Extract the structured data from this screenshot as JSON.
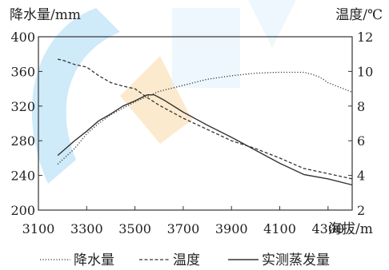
{
  "chart_data": {
    "type": "line",
    "xlabel": "海拔/m",
    "ylabel_left": "降水量/mm",
    "ylabel_right": "温度/℃",
    "x_ticks": [
      3100,
      3300,
      3500,
      3700,
      3900,
      4100,
      4300
    ],
    "xlim": [
      3100,
      4400
    ],
    "ylim_left": [
      200,
      400
    ],
    "y_ticks_left": [
      200,
      240,
      280,
      320,
      360,
      400
    ],
    "ylim_right": [
      2,
      12
    ],
    "y_ticks_right": [
      2,
      4,
      6,
      8,
      10,
      12
    ],
    "grid": false,
    "legend_position": "bottom",
    "series": [
      {
        "name": "降水量",
        "axis": "left",
        "style": "dotted",
        "x": [
          3180,
          3250,
          3300,
          3350,
          3400,
          3500,
          3600,
          3700,
          3800,
          3900,
          4000,
          4100,
          4200,
          4230,
          4260,
          4280,
          4300,
          4400
        ],
        "y": [
          253,
          271,
          288,
          300,
          310,
          325,
          337,
          344,
          351,
          355,
          358,
          359,
          359,
          357,
          354,
          351,
          347,
          336
        ]
      },
      {
        "name": "温度",
        "axis": "left",
        "style": "dashed",
        "x": [
          3180,
          3200,
          3250,
          3300,
          3350,
          3400,
          3450,
          3500,
          3550,
          3600,
          3700,
          3800,
          3900,
          4000,
          4100,
          4200,
          4300,
          4400
        ],
        "y": [
          374,
          373,
          368,
          365,
          355,
          347,
          343,
          340,
          330,
          321,
          306,
          293,
          280,
          271,
          260,
          248,
          242,
          236
        ]
      },
      {
        "name": "实测蒸发量",
        "axis": "left",
        "style": "solid",
        "x": [
          3180,
          3250,
          3300,
          3350,
          3400,
          3450,
          3500,
          3550,
          3580,
          3620,
          3700,
          3800,
          3900,
          4000,
          4100,
          4200,
          4300,
          4400
        ],
        "y": [
          263,
          280,
          291,
          303,
          311,
          320,
          326,
          333,
          333,
          327,
          313,
          298,
          284,
          269,
          254,
          241,
          236,
          229
        ]
      }
    ],
    "legend": [
      "降水量",
      "温度",
      "实测蒸发量"
    ]
  },
  "watermark": {
    "color_blue": "#bfe3f7",
    "color_orange": "#fbe3bf"
  }
}
